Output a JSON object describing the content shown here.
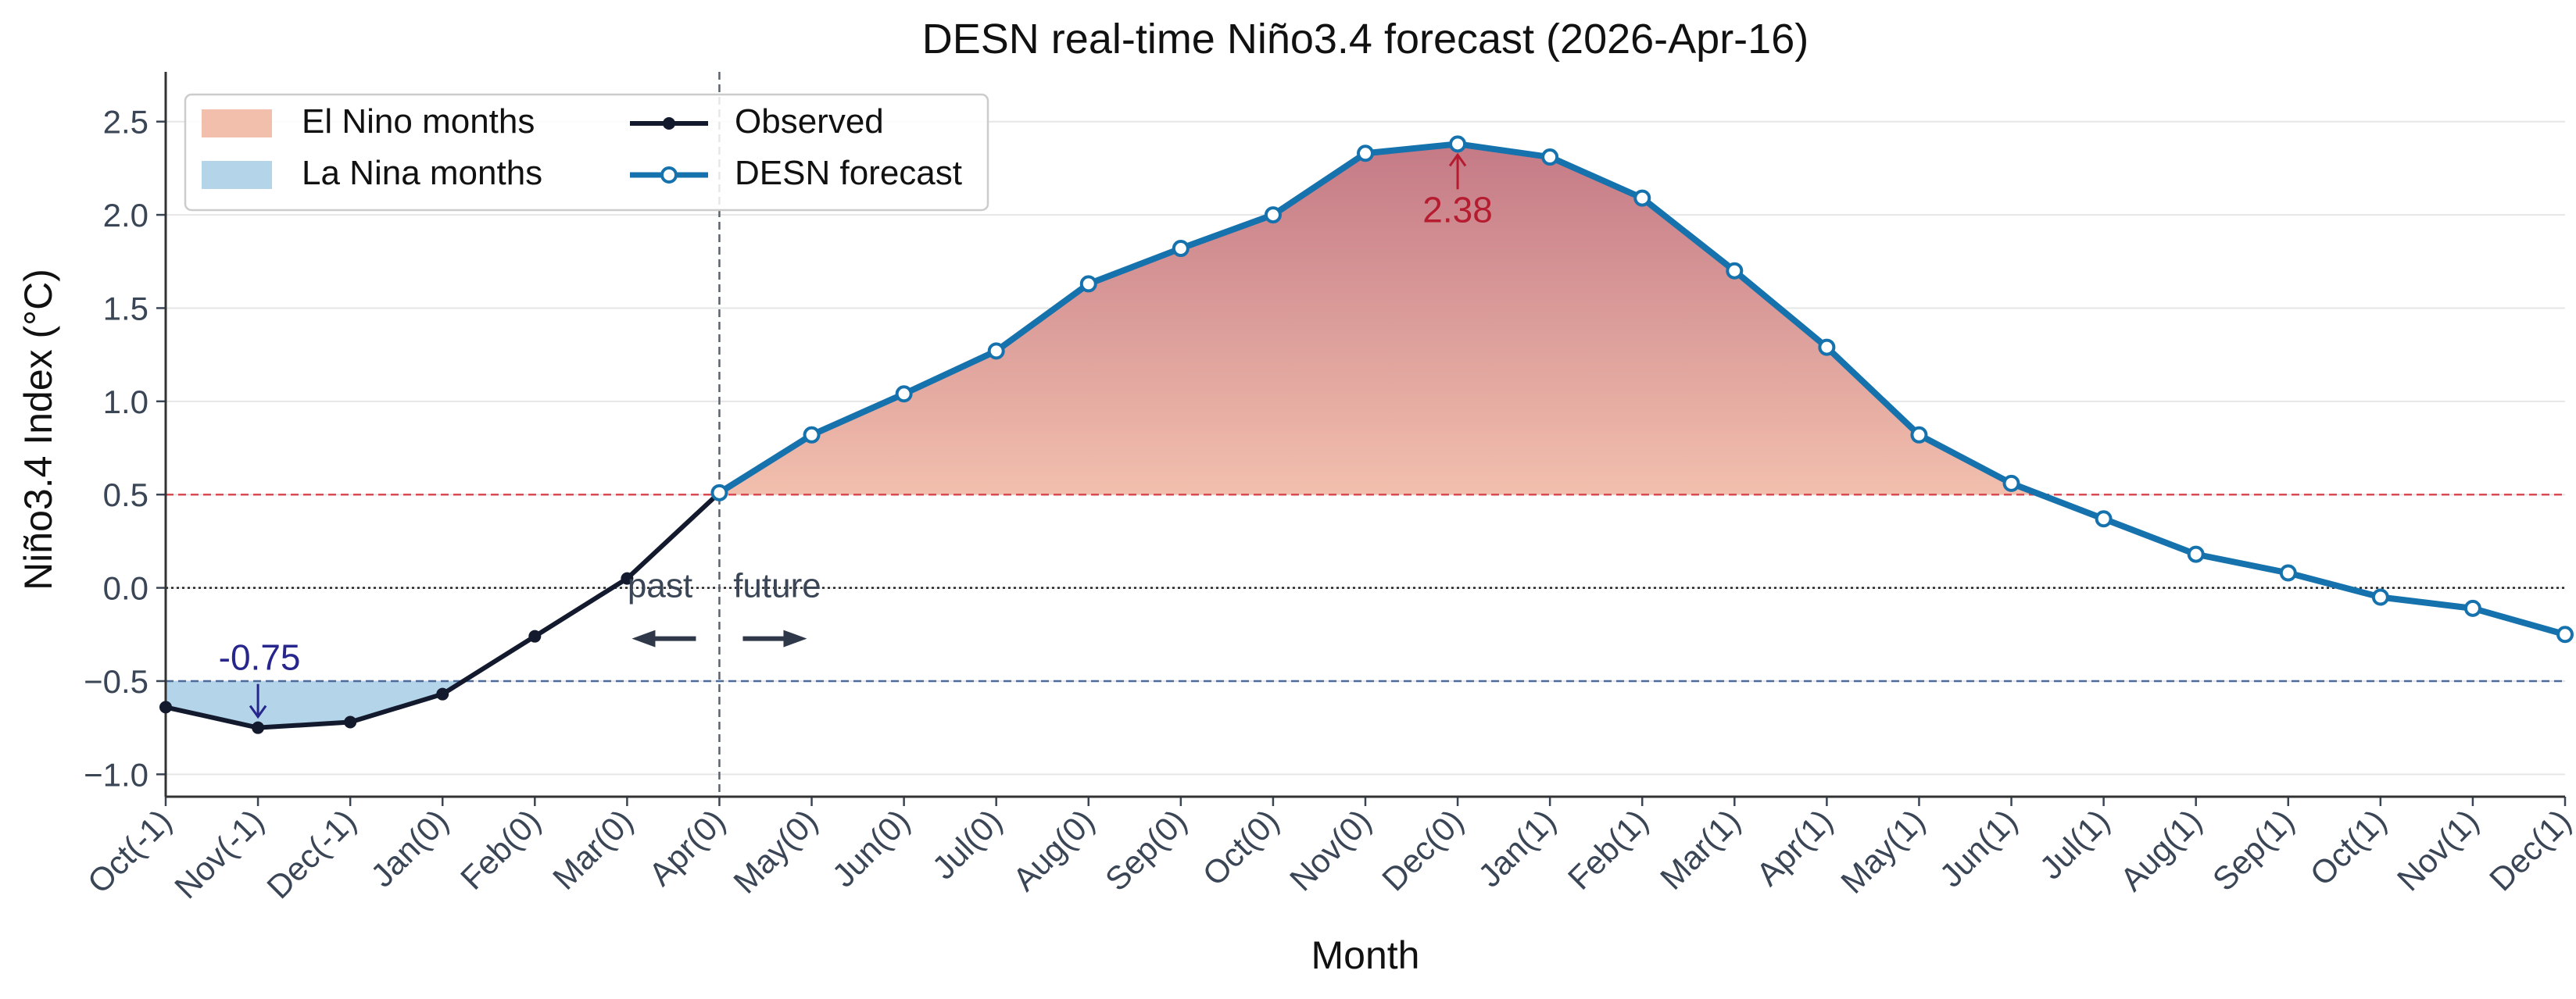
{
  "chart_data": {
    "type": "line",
    "title": "DESN real-time Niño3.4 forecast (2026-Apr-16)",
    "xlabel": "Month",
    "ylabel": "Niño3.4 Index (°C)",
    "ylim": [
      -1.12,
      2.75
    ],
    "yticks": [
      -1.0,
      -0.5,
      0.0,
      0.5,
      1.0,
      1.5,
      2.0,
      2.5
    ],
    "ytick_labels": [
      "−1.0",
      "−0.5",
      "0.0",
      "0.5",
      "1.0",
      "1.5",
      "2.0",
      "2.5"
    ],
    "categories": [
      "Oct(-1)",
      "Nov(-1)",
      "Dec(-1)",
      "Jan(0)",
      "Feb(0)",
      "Mar(0)",
      "Apr(0)",
      "May(0)",
      "Jun(0)",
      "Jul(0)",
      "Aug(0)",
      "Sep(0)",
      "Oct(0)",
      "Nov(0)",
      "Dec(0)",
      "Jan(1)",
      "Feb(1)",
      "Mar(1)",
      "Apr(1)",
      "May(1)",
      "Jun(1)",
      "Jul(1)",
      "Aug(1)",
      "Sep(1)",
      "Oct(1)",
      "Nov(1)",
      "Dec(1)"
    ],
    "grid": "horizontal",
    "series": [
      {
        "name": "Observed",
        "color": "#131a2e",
        "marker": "filled-circle",
        "values": [
          -0.64,
          -0.75,
          -0.72,
          -0.57,
          -0.26,
          0.05,
          0.51,
          null,
          null,
          null,
          null,
          null,
          null,
          null,
          null,
          null,
          null,
          null,
          null,
          null,
          null,
          null,
          null,
          null,
          null,
          null,
          null
        ]
      },
      {
        "name": "DESN forecast",
        "color": "#1672ad",
        "marker": "hollow-circle",
        "values": [
          null,
          null,
          null,
          null,
          null,
          null,
          0.51,
          0.82,
          1.04,
          1.27,
          1.63,
          1.82,
          2.0,
          2.33,
          2.38,
          2.31,
          2.09,
          1.7,
          1.29,
          0.82,
          0.56,
          0.37,
          0.18,
          0.08,
          -0.05,
          -0.11,
          -0.25
        ]
      }
    ],
    "thresholds": {
      "el_nino": 0.5,
      "la_nina": -0.5,
      "el_nino_color": "#d94b52",
      "la_nina_color": "#4c6a9a",
      "zero_color": "#222222"
    },
    "legend": {
      "placement": "top-left",
      "entries": [
        {
          "label": "El Nino months",
          "kind": "patch",
          "color": "#f2bfad"
        },
        {
          "label": "La Nina months",
          "kind": "patch",
          "color": "#b3d4e9"
        },
        {
          "label": "Observed",
          "kind": "line",
          "color": "#131a2e"
        },
        {
          "label": "DESN forecast",
          "kind": "line",
          "color": "#1672ad"
        }
      ]
    },
    "annotations": {
      "peak": {
        "label": "2.38",
        "category": "Dec(0)",
        "value": 2.38,
        "color": "#b51c2f"
      },
      "trough": {
        "label": "-0.75",
        "category": "Nov(-1)",
        "value": -0.75,
        "color": "#27268c"
      },
      "past_label": "past",
      "future_label": "future",
      "arrow_color": "#2f3849",
      "divider_category": "Apr(0)"
    },
    "colors": {
      "el_nino_light": "#f2bfad",
      "el_nino_dark": "#c47a86",
      "la_nina_fill": "#b3d4e9"
    }
  }
}
